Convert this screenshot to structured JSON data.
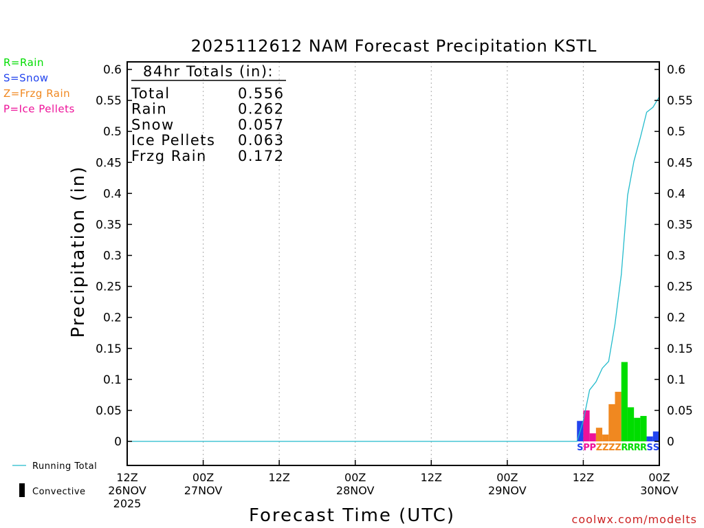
{
  "chart_data": {
    "type": "bar",
    "title": "2025112612 NAM Forecast Precipitation KSTL",
    "ylabel": "Precipitation (in)",
    "xlabel": "Forecast Time (UTC)",
    "ylim": [
      -0.04,
      0.61
    ],
    "xlim_hours": [
      0,
      84
    ],
    "yticks": [
      0,
      0.05,
      0.1,
      0.15,
      0.2,
      0.25,
      0.3,
      0.35,
      0.4,
      0.45,
      0.5,
      0.55,
      0.6
    ],
    "ytick_labels": [
      "0",
      "0.05",
      "0.1",
      "0.15",
      "0.2",
      "0.25",
      "0.3",
      "0.35",
      "0.4",
      "0.45",
      "0.5",
      "0.55",
      "0.6"
    ],
    "xticks": [
      {
        "hour": 0,
        "line1": "12Z",
        "line2": "26NOV",
        "line3": "2025"
      },
      {
        "hour": 12,
        "line1": "00Z",
        "line2": "27NOV",
        "line3": ""
      },
      {
        "hour": 24,
        "line1": "12Z",
        "line2": "",
        "line3": ""
      },
      {
        "hour": 36,
        "line1": "00Z",
        "line2": "28NOV",
        "line3": ""
      },
      {
        "hour": 48,
        "line1": "12Z",
        "line2": "",
        "line3": ""
      },
      {
        "hour": 60,
        "line1": "00Z",
        "line2": "29NOV",
        "line3": ""
      },
      {
        "hour": 72,
        "line1": "12Z",
        "line2": "",
        "line3": ""
      },
      {
        "hour": 84,
        "line1": "00Z",
        "line2": "30NOV",
        "line3": ""
      }
    ],
    "type_colors": {
      "R": "#00dd00",
      "S": "#2244ee",
      "Z": "#f08820",
      "P": "#ee1199"
    },
    "bars": [
      {
        "hour": 72,
        "value": 0.033,
        "type": "S"
      },
      {
        "hour": 73,
        "value": 0.05,
        "type": "P"
      },
      {
        "hour": 74,
        "value": 0.013,
        "type": "P"
      },
      {
        "hour": 75,
        "value": 0.022,
        "type": "Z"
      },
      {
        "hour": 76,
        "value": 0.011,
        "type": "Z"
      },
      {
        "hour": 77,
        "value": 0.06,
        "type": "Z"
      },
      {
        "hour": 78,
        "value": 0.08,
        "type": "Z"
      },
      {
        "hour": 79,
        "value": 0.128,
        "type": "R"
      },
      {
        "hour": 80,
        "value": 0.055,
        "type": "R"
      },
      {
        "hour": 81,
        "value": 0.038,
        "type": "R"
      },
      {
        "hour": 82,
        "value": 0.041,
        "type": "R"
      },
      {
        "hour": 83,
        "value": 0.008,
        "type": "S"
      },
      {
        "hour": 84,
        "value": 0.016,
        "type": "S"
      }
    ],
    "running_total": {
      "color": "#22bbcc",
      "points": [
        [
          0,
          0
        ],
        [
          71,
          0
        ],
        [
          72,
          0.033
        ],
        [
          73,
          0.083
        ],
        [
          74,
          0.096
        ],
        [
          75,
          0.118
        ],
        [
          76,
          0.129
        ],
        [
          77,
          0.189
        ],
        [
          78,
          0.269
        ],
        [
          79,
          0.397
        ],
        [
          80,
          0.452
        ],
        [
          81,
          0.49
        ],
        [
          82,
          0.531
        ],
        [
          83,
          0.539
        ],
        [
          84,
          0.556
        ]
      ]
    },
    "totals_box": {
      "header": "84hr Totals (in):",
      "rows": [
        {
          "label": "Total",
          "value": "0.556"
        },
        {
          "label": "Rain",
          "value": "0.262"
        },
        {
          "label": "Snow",
          "value": "0.057"
        },
        {
          "label": "Ice Pellets",
          "value": "0.063"
        },
        {
          "label": "Frzg Rain",
          "value": "0.172"
        }
      ]
    },
    "type_legend": [
      {
        "code": "R",
        "text": "R=Rain",
        "color": "#00dd00"
      },
      {
        "code": "S",
        "text": "S=Snow",
        "color": "#2244ee"
      },
      {
        "code": "Z",
        "text": "Z=Frzg Rain",
        "color": "#f08820"
      },
      {
        "code": "P",
        "text": "P=Ice Pellets",
        "color": "#ee1199"
      }
    ],
    "bottom_legend": {
      "running_total_label": "Running Total",
      "convective_label": "Convective"
    }
  },
  "credit": "coolwx.com/modelts"
}
